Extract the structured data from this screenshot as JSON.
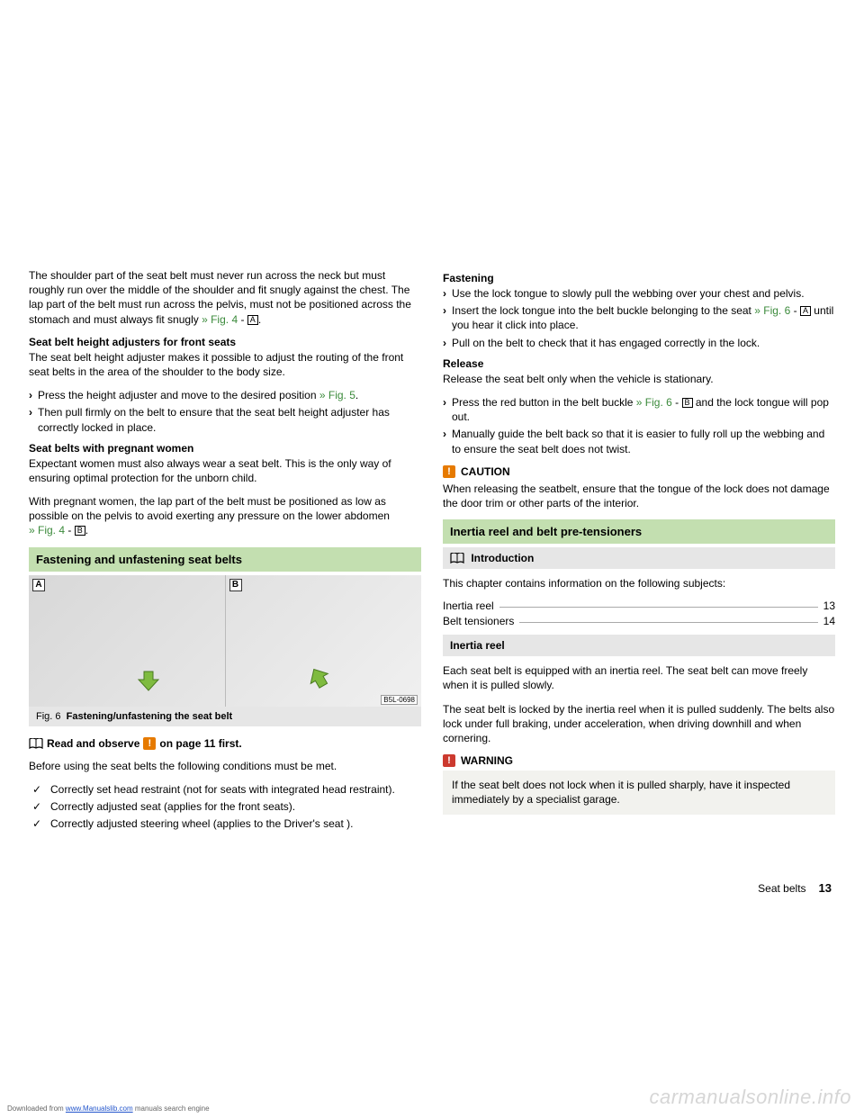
{
  "colors": {
    "headGreen": "#c3dfb0",
    "headGrey": "#e6e6e6",
    "calloutBg": "#f2f2ee",
    "linkGreen": "#3b8a3b",
    "orange": "#e67a00",
    "red": "#cc3a2f",
    "text": "#000000",
    "watermark": "#d6d6d6"
  },
  "left": {
    "p1": "The shoulder part of the seat belt must never run across the neck but must roughly run over the middle of the shoulder and fit snugly against the chest. The lap part of the belt must run across the pelvis, must not be positioned across the stomach and must always fit snugly ",
    "p1_link": "» Fig. 4",
    "p1_suffix": " - ",
    "p1_box": "A",
    "h1": "Seat belt height adjusters for front seats",
    "p2": "The seat belt height adjuster makes it possible to adjust the routing of the front seat belts in the area of the shoulder to the body size.",
    "b1": "Press the height adjuster and move to the desired position ",
    "b1_link": "» Fig. 5",
    "b2": "Then pull firmly on the belt to ensure that the seat belt height adjuster has correctly locked in place.",
    "h2": "Seat belts with pregnant women",
    "p3": "Expectant women must also always wear a seat belt. This is the only way of ensuring optimal protection for the unborn child.",
    "p4": "With pregnant women, the lap part of the belt must be positioned as low as possible on the pelvis to avoid exerting any pressure on the lower abdomen",
    "p4_link": "» Fig. 4",
    "p4_suffix": " - ",
    "p4_box": "B",
    "sec1": "Fastening and unfastening seat belts",
    "fig": {
      "leftLetter": "A",
      "rightLetter": "B",
      "code": "B5L-0698",
      "captionPrefix": "Fig. 6",
      "caption": "Fastening/unfastening the seat belt"
    },
    "read": "Read and observe",
    "read2": "on page 11 first.",
    "p5": "Before using the seat belts the following conditions must be met.",
    "c1": "Correctly set head restraint (not for seats with integrated head restraint).",
    "c2": "Correctly adjusted seat (applies for the front seats).",
    "c3": "Correctly adjusted steering wheel (applies to the Driver's seat ).",
    "arrowColor": "#7fbb3f"
  },
  "right": {
    "h1": "Fastening",
    "b1": "Use the lock tongue to slowly pull the webbing over your chest and pelvis.",
    "b2a": "Insert the lock tongue into the belt buckle belonging to the seat ",
    "b2_link": "» Fig. 6",
    "b2_suffix": " - ",
    "b2_box": "A",
    "b2b": " until you hear it click into place.",
    "b3": "Pull on the belt to check that it has engaged correctly in the lock.",
    "h2": "Release",
    "p1": "Release the seat belt only when the vehicle is stationary.",
    "b4a": "Press the red button in the belt buckle ",
    "b4_link": "» Fig. 6",
    "b4_suffix": " - ",
    "b4_box": "B",
    "b4b": " and the lock tongue will pop out.",
    "b5": "Manually guide the belt back so that it is easier to fully roll up the webbing and to ensure the seat belt does not twist.",
    "cautionLabel": "CAUTION",
    "cautionText": "When releasing the seatbelt, ensure that the tongue of the lock does not damage the door trim or other parts of the interior.",
    "sec1": "Inertia reel and belt pre-tensioners",
    "introLabel": "Introduction",
    "p2": "This chapter contains information on the following subjects:",
    "toc": [
      {
        "label": "Inertia reel",
        "page": "13"
      },
      {
        "label": "Belt tensioners",
        "page": "14"
      }
    ],
    "sec2": "Inertia reel",
    "p3": "Each seat belt is equipped with an inertia reel. The seat belt can move freely when it is pulled slowly.",
    "p4": "The seat belt is locked by the inertia reel when it is pulled suddenly. The belts also lock under full braking, under acceleration, when driving downhill and when cornering.",
    "warningLabel": "WARNING",
    "warningText": "If the seat belt does not lock when it is pulled sharply, have it inspected immediately by a specialist garage."
  },
  "footer": {
    "section": "Seat belts",
    "page": "13",
    "dl1": "Downloaded from ",
    "dl2": "www.Manualslib.com",
    "dl3": " manuals search engine",
    "watermark": "carmanualsonline.info"
  }
}
